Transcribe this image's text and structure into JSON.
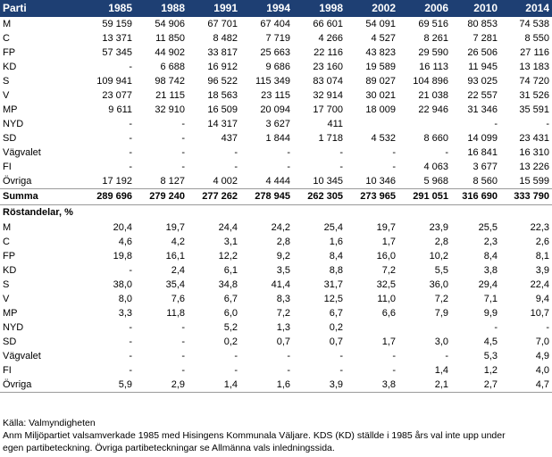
{
  "header": {
    "party": "Parti",
    "years": [
      "1985",
      "1988",
      "1991",
      "1994",
      "1998",
      "2002",
      "2006",
      "2010",
      "2014"
    ]
  },
  "votes": [
    {
      "party": "M",
      "values": [
        "59 159",
        "54 906",
        "67 701",
        "67 404",
        "66 601",
        "54 091",
        "69 516",
        "80 853",
        "74 538"
      ]
    },
    {
      "party": "C",
      "values": [
        "13 371",
        "11 850",
        "8 482",
        "7 719",
        "4 266",
        "4 527",
        "8 261",
        "7 281",
        "8 550"
      ]
    },
    {
      "party": "FP",
      "values": [
        "57 345",
        "44 902",
        "33 817",
        "25 663",
        "22 116",
        "43 823",
        "29 590",
        "26 506",
        "27 116"
      ]
    },
    {
      "party": "KD",
      "values": [
        "-",
        "6 688",
        "16 912",
        "9 686",
        "23 160",
        "19 589",
        "16 113",
        "11 945",
        "13 183"
      ]
    },
    {
      "party": "S",
      "values": [
        "109 941",
        "98 742",
        "96 522",
        "115 349",
        "83 074",
        "89 027",
        "104 896",
        "93 025",
        "74 720"
      ]
    },
    {
      "party": "V",
      "values": [
        "23 077",
        "21 115",
        "18 563",
        "23 115",
        "32 914",
        "30 021",
        "21 038",
        "22 557",
        "31 526"
      ]
    },
    {
      "party": "MP",
      "values": [
        "9 611",
        "32 910",
        "16 509",
        "20 094",
        "17 700",
        "18 009",
        "22 946",
        "31 346",
        "35 591"
      ]
    },
    {
      "party": "NYD",
      "values": [
        "-",
        "-",
        "14 317",
        "3 627",
        "411",
        "",
        "",
        "-",
        "-"
      ]
    },
    {
      "party": "SD",
      "values": [
        "-",
        "-",
        "437",
        "1 844",
        "1 718",
        "4 532",
        "8 660",
        "14 099",
        "23 431"
      ]
    },
    {
      "party": "Vägvalet",
      "values": [
        "-",
        "-",
        "-",
        "-",
        "-",
        "-",
        "-",
        "16 841",
        "16 310"
      ]
    },
    {
      "party": "FI",
      "values": [
        "-",
        "-",
        "-",
        "-",
        "-",
        "-",
        "4 063",
        "3 677",
        "13 226"
      ]
    },
    {
      "party": "Övriga",
      "values": [
        "17 192",
        "8 127",
        "4 002",
        "4 444",
        "10 345",
        "10 346",
        "5 968",
        "8 560",
        "15 599"
      ]
    }
  ],
  "summa": {
    "label": "Summa",
    "values": [
      "289 696",
      "279 240",
      "277 262",
      "278 945",
      "262 305",
      "273 965",
      "291 051",
      "316 690",
      "333 790"
    ]
  },
  "share_heading": "Röstandelar, %",
  "shares": [
    {
      "party": "M",
      "values": [
        "20,4",
        "19,7",
        "24,4",
        "24,2",
        "25,4",
        "19,7",
        "23,9",
        "25,5",
        "22,3"
      ]
    },
    {
      "party": "C",
      "values": [
        "4,6",
        "4,2",
        "3,1",
        "2,8",
        "1,6",
        "1,7",
        "2,8",
        "2,3",
        "2,6"
      ]
    },
    {
      "party": "FP",
      "values": [
        "19,8",
        "16,1",
        "12,2",
        "9,2",
        "8,4",
        "16,0",
        "10,2",
        "8,4",
        "8,1"
      ]
    },
    {
      "party": "KD",
      "values": [
        "-",
        "2,4",
        "6,1",
        "3,5",
        "8,8",
        "7,2",
        "5,5",
        "3,8",
        "3,9"
      ]
    },
    {
      "party": "S",
      "values": [
        "38,0",
        "35,4",
        "34,8",
        "41,4",
        "31,7",
        "32,5",
        "36,0",
        "29,4",
        "22,4"
      ]
    },
    {
      "party": "V",
      "values": [
        "8,0",
        "7,6",
        "6,7",
        "8,3",
        "12,5",
        "11,0",
        "7,2",
        "7,1",
        "9,4"
      ]
    },
    {
      "party": "MP",
      "values": [
        "3,3",
        "11,8",
        "6,0",
        "7,2",
        "6,7",
        "6,6",
        "7,9",
        "9,9",
        "10,7"
      ]
    },
    {
      "party": "NYD",
      "values": [
        "-",
        "-",
        "5,2",
        "1,3",
        "0,2",
        "",
        "",
        "-",
        "-"
      ]
    },
    {
      "party": "SD",
      "values": [
        "-",
        "-",
        "0,2",
        "0,7",
        "0,7",
        "1,7",
        "3,0",
        "4,5",
        "7,0"
      ]
    },
    {
      "party": "Vägvalet",
      "values": [
        "-",
        "-",
        "-",
        "-",
        "-",
        "-",
        "-",
        "5,3",
        "4,9"
      ]
    },
    {
      "party": "FI",
      "values": [
        "-",
        "-",
        "-",
        "-",
        "-",
        "-",
        "1,4",
        "1,2",
        "4,0"
      ]
    },
    {
      "party": "Övriga",
      "values": [
        "5,9",
        "2,9",
        "1,4",
        "1,6",
        "3,9",
        "3,8",
        "2,1",
        "2,7",
        "4,7"
      ]
    }
  ],
  "notes": {
    "source": "Källa:  Valmyndigheten",
    "note_line1": "Anm  Miljöpartiet valsamverkade 1985 med Hisingens Kommunala Väljare.  KDS (KD) ställde i 1985 års val inte upp under",
    "note_line2": "egen partibeteckning. Övriga partibeteckningar se Allmänna vals inledningssida."
  }
}
